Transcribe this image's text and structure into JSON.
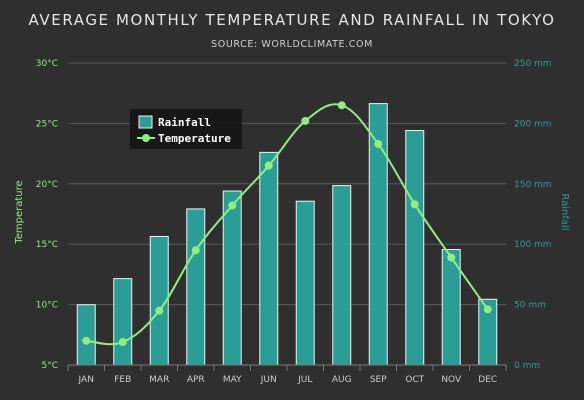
{
  "chart_data": {
    "type": "bar+line",
    "title": "AVERAGE MONTHLY TEMPERATURE AND RAINFALL IN TOKYO",
    "subtitle": "SOURCE: WORLDCLIMATE.COM",
    "categories": [
      "Jan",
      "Feb",
      "Mar",
      "Apr",
      "May",
      "Jun",
      "Jul",
      "Aug",
      "Sep",
      "Oct",
      "Nov",
      "Dec"
    ],
    "series": [
      {
        "name": "Rainfall",
        "type": "bar",
        "axis": "right",
        "values": [
          49.9,
          71.5,
          106.4,
          129.2,
          144.0,
          176.0,
          135.6,
          148.5,
          216.4,
          194.1,
          95.6,
          54.4
        ]
      },
      {
        "name": "Temperature",
        "type": "line",
        "axis": "left",
        "values": [
          7.0,
          6.9,
          9.5,
          14.5,
          18.2,
          21.5,
          25.2,
          26.5,
          23.3,
          18.3,
          13.9,
          9.6
        ]
      }
    ],
    "y_left": {
      "label": "Temperature",
      "min": 5,
      "max": 30,
      "ticks": [
        "5°C",
        "10°C",
        "15°C",
        "20°C",
        "25°C",
        "30°C"
      ]
    },
    "y_right": {
      "label": "Rainfall",
      "min": 0,
      "max": 250,
      "ticks": [
        "0 mm",
        "50 mm",
        "100 mm",
        "150 mm",
        "200 mm",
        "250 mm"
      ]
    },
    "x_tick_labels": [
      "JAN",
      "FEB",
      "MAR",
      "APR",
      "MAY",
      "JUN",
      "JUL",
      "AUG",
      "SEP",
      "OCT",
      "NOV",
      "DEC"
    ],
    "legend": {
      "placement": "top-left",
      "items": [
        "Rainfall",
        "Temperature"
      ]
    },
    "grid": true,
    "colors": {
      "bar": "#2a9d96",
      "bar_stroke": "#f2f2f2",
      "line": "#90ee7e",
      "left_axis": "#90ee7e",
      "right_axis": "#2a9d96",
      "grid": "#5a5a5a",
      "tick_x": "#cccccc"
    }
  }
}
